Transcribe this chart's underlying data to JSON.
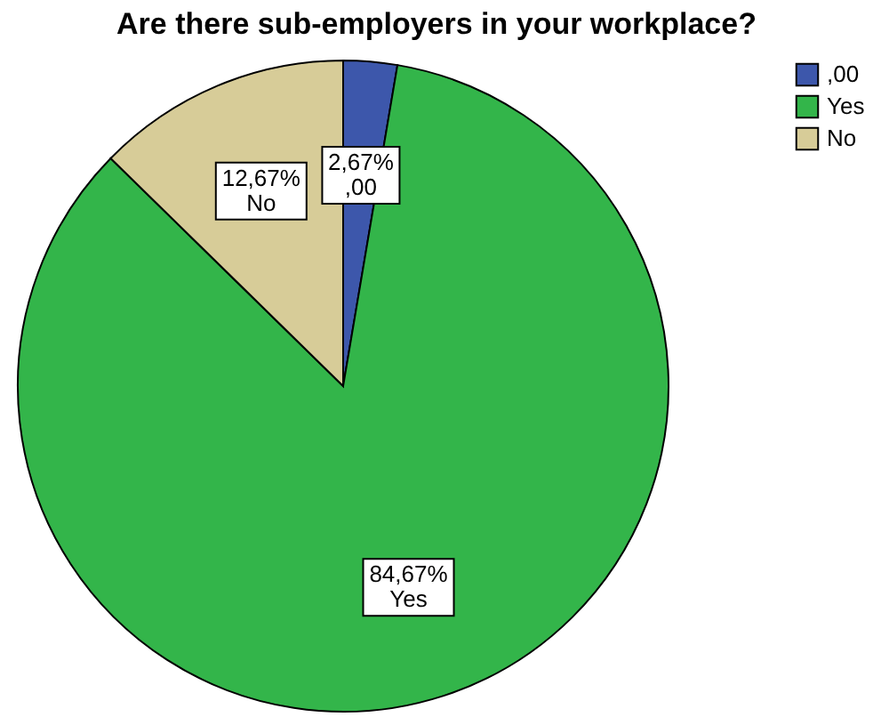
{
  "chart_data": {
    "type": "pie",
    "title": "Are there sub-employers in your workplace?",
    "categories": [
      ",00",
      "Yes",
      "No"
    ],
    "values": [
      2.67,
      84.67,
      12.67
    ],
    "colors": [
      "#3d57ab",
      "#33b54a",
      "#d7cc98"
    ],
    "value_labels": [
      "2,67%",
      "84,67%",
      "12,67%"
    ],
    "legend": "top right"
  }
}
